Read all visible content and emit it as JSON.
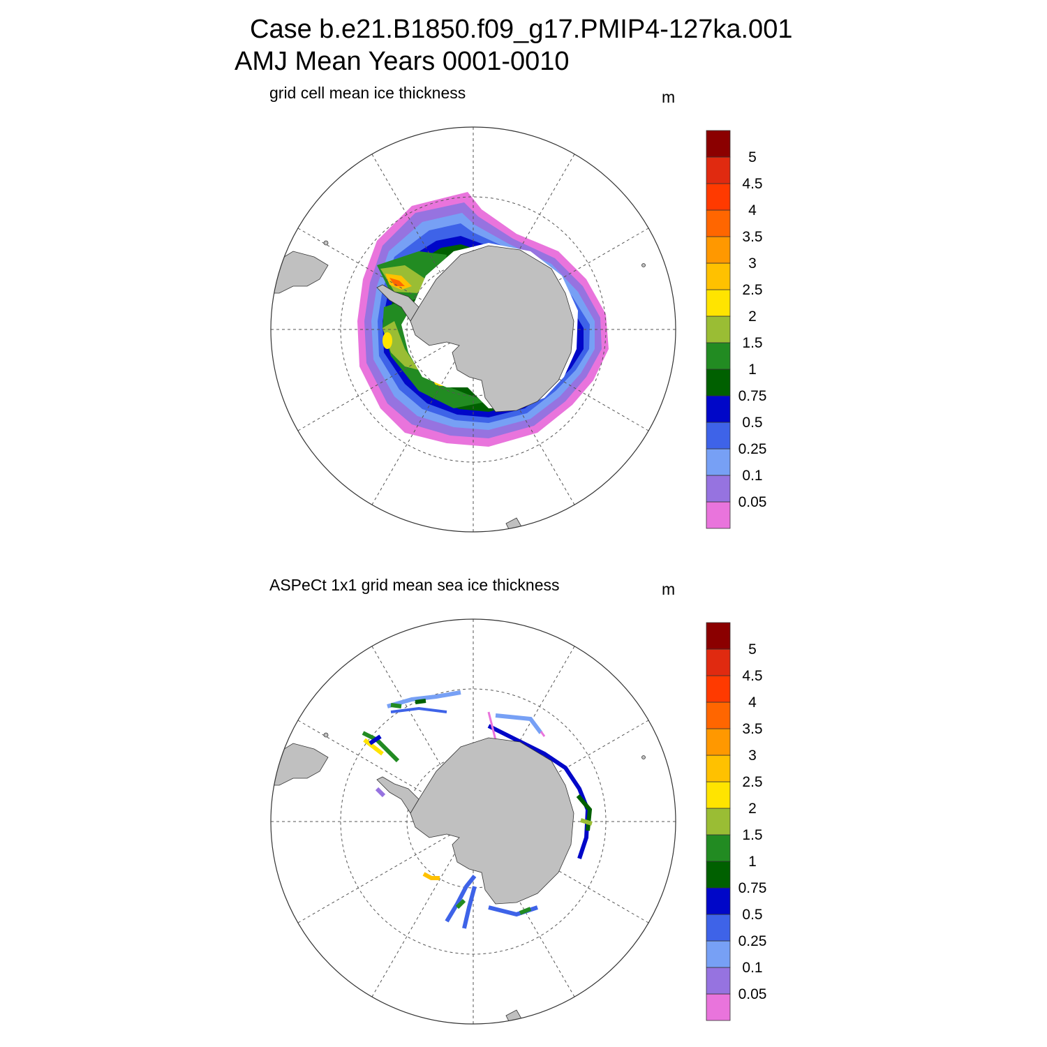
{
  "header": {
    "title_line1": "Case b.e21.B1850.f09_g17.PMIP4-127ka.001",
    "title_line2": "AMJ Mean   Years 0001-0010"
  },
  "panels": [
    {
      "id": "model",
      "subtitle": "grid cell mean ice thickness",
      "unit": "m"
    },
    {
      "id": "obs",
      "subtitle": "ASPeCt 1x1 grid mean sea ice thickness",
      "unit": "m"
    }
  ],
  "colorbar": {
    "colors": [
      "#e974dc",
      "#9673e0",
      "#77a0f5",
      "#3e63e8",
      "#0007c8",
      "#006000",
      "#228b22",
      "#9abd34",
      "#ffe400",
      "#ffc100",
      "#ff9800",
      "#ff6600",
      "#ff3a00",
      "#e02a10",
      "#8b0000"
    ],
    "labels": [
      "0.05",
      "0.1",
      "0.25",
      "0.5",
      "0.75",
      "1",
      "1.5",
      "2",
      "2.5",
      "3",
      "3.5",
      "4",
      "4.5",
      "5"
    ]
  },
  "colors": {
    "land": "#c0c0c0",
    "grid": "#555555"
  }
}
